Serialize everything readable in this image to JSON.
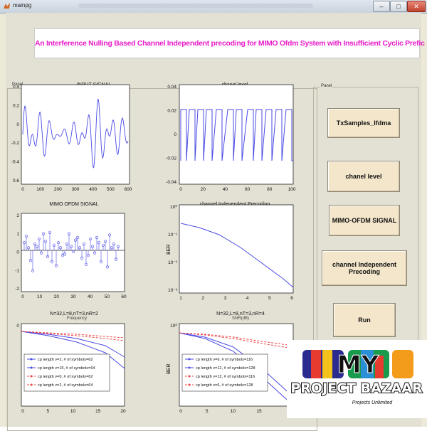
{
  "window": {
    "title": "mainpg",
    "buttons": {
      "minimize": "–",
      "maximize": "□",
      "close": "✕"
    }
  },
  "banner": {
    "text": "An Interference Nulling Based Channel Independent precoding for MIMO Ofdm System with Insufficient Cyclic Prefic"
  },
  "left_panel": {
    "label": "Panel"
  },
  "right_panel": {
    "label": "Panel"
  },
  "plots": {
    "input_signal": {
      "title": "INPUT SIGNAL",
      "xticks": [
        "0",
        "100",
        "200",
        "300",
        "400",
        "500",
        "600"
      ],
      "yticks": [
        "0.4",
        "0.2",
        "0",
        "-0.2",
        "-0.4",
        "0.6"
      ]
    },
    "channel_level": {
      "title": "chanel level",
      "xticks": [
        "0",
        "20",
        "40",
        "60",
        "80",
        "100"
      ],
      "yticks": [
        "0.04",
        "0.02",
        "0",
        "-0.02",
        "-0.04"
      ]
    },
    "mimo_ofdm": {
      "title": "MIMO OFDM SIGNAL",
      "xticks": [
        "0",
        "10",
        "20",
        "30",
        "40",
        "50",
        "60"
      ],
      "yticks": [
        "2",
        "1",
        "0",
        "-1",
        "-2"
      ]
    },
    "cip": {
      "title": "channel Independent Precoding",
      "ylabel": "BER",
      "xticks": [
        "1",
        "2",
        "3",
        "4",
        "5",
        "6"
      ],
      "yticks": [
        "10⁰",
        "10⁻¹",
        "10⁻²",
        "10⁻³"
      ]
    },
    "ber_left": {
      "title": "N=32,L=8,nT=3,nR=2",
      "overlap": "Frequency",
      "xticks": [
        "0",
        "5",
        "10",
        "15",
        "20"
      ],
      "ytick_top": "0",
      "legend": [
        "cp length v=2, # of symbols=62",
        "cp length v=15, # of symbols=64",
        "cp length v=0, # of symbols=62",
        "cp length v=2, # of symbols=64"
      ]
    },
    "ber_right": {
      "title": "N=32,L=8,nT=3,nR=4",
      "overlap": "SNR(dB)",
      "ylabel": "BER",
      "xticks": [
        "0",
        "5",
        "10",
        "15"
      ],
      "ytick_top": "10⁰",
      "legend": [
        "cp length v=6, # of symbols=116",
        "cp length v=12, # of symbols=128",
        "cp length v=12, # of symbols=116",
        "cp length v=6, # of symbols=128"
      ]
    }
  },
  "buttons": {
    "tx": "TxSamples_Ifdma",
    "chanel": "chanel level",
    "mimo": "MIMO-OFDM SIGNAL",
    "cip": "channel Independent Precoding",
    "run": "Run"
  },
  "logo": {
    "letters": "MY",
    "name": "PROJECT BAZAAR",
    "tagline": "Projects Unlimited"
  },
  "colors": {
    "series_blue": "#4a4ae6",
    "series_red": "#ee4444",
    "banner_text": "#e81ec8",
    "button_face": "#f3e6cb"
  }
}
